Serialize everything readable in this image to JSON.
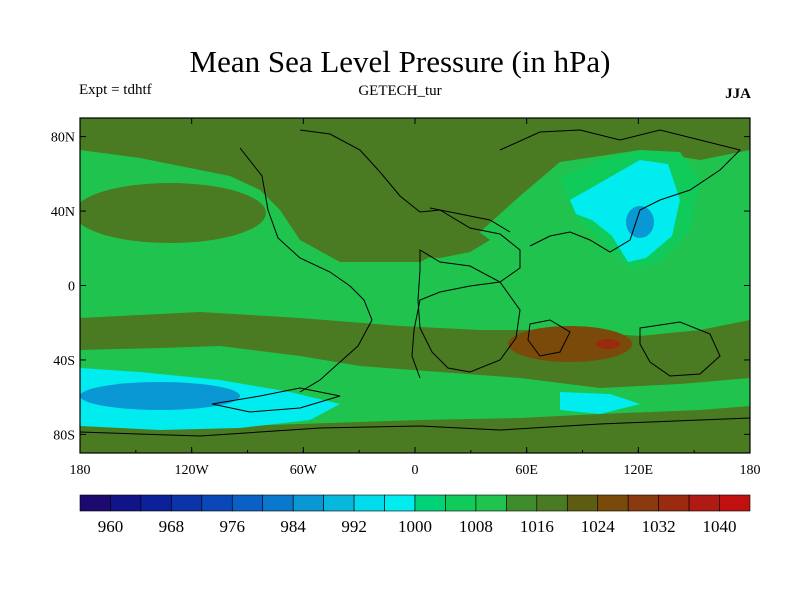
{
  "chart_data": {
    "type": "heatmap",
    "title": "Mean Sea Level Pressure (in hPa)",
    "subtitle_left": "Expt = tdhtf",
    "subtitle_center": "GETECH_tur",
    "subtitle_right": "JJA",
    "x_ticks": [
      "180",
      "120W",
      "60W",
      "0",
      "60E",
      "120E",
      "180"
    ],
    "y_ticks": [
      "80N",
      "40N",
      "0",
      "40S",
      "80S"
    ],
    "xlim": [
      -180,
      180
    ],
    "ylim": [
      -90,
      90
    ],
    "colorbar": {
      "levels": [
        956,
        960,
        964,
        968,
        972,
        976,
        980,
        984,
        988,
        992,
        996,
        1000,
        1004,
        1008,
        1012,
        1016,
        1020,
        1024,
        1028,
        1032,
        1036,
        1040,
        1044
      ],
      "colors": [
        "#1d0a6e",
        "#101488",
        "#0c2099",
        "#0a34a8",
        "#0a48b8",
        "#0a60c4",
        "#0a78cc",
        "#0a98d4",
        "#08b8dc",
        "#00dceb",
        "#00ecef",
        "#00d278",
        "#10ca5a",
        "#20c34e",
        "#3e8c2a",
        "#4a7a22",
        "#5e5c10",
        "#7a4a0a",
        "#8a3a0e",
        "#9a2a10",
        "#b01a12",
        "#c01010"
      ],
      "labels": [
        "960",
        "968",
        "976",
        "984",
        "992",
        "1000",
        "1008",
        "1016",
        "1024",
        "1032",
        "1040"
      ]
    }
  }
}
